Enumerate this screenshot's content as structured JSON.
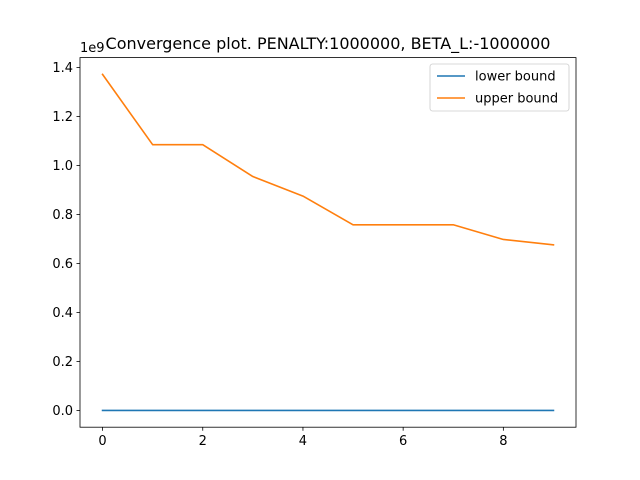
{
  "chart_data": {
    "type": "line",
    "title": "Convergence plot. PENALTY:1000000, BETA_L:-1000000",
    "xlabel": "",
    "ylabel": "",
    "y_offset_label": "1e9",
    "x": [
      0,
      1,
      2,
      3,
      4,
      5,
      6,
      7,
      8,
      9
    ],
    "xlim": [
      -0.45,
      9.45
    ],
    "ylim": [
      -0.0686,
      1.4406
    ],
    "x_ticks": [
      0,
      2,
      4,
      6,
      8
    ],
    "x_tick_labels": [
      "0",
      "2",
      "4",
      "6",
      "8"
    ],
    "y_ticks": [
      0.0,
      0.2,
      0.4,
      0.6,
      0.8,
      1.0,
      1.2,
      1.4
    ],
    "y_tick_labels": [
      "0.0",
      "0.2",
      "0.4",
      "0.6",
      "0.8",
      "1.0",
      "1.2",
      "1.4"
    ],
    "grid": false,
    "legend_position": "top-right",
    "series": [
      {
        "name": "lower bound",
        "color": "#1f77b4",
        "values": [
          0,
          0,
          0,
          0,
          0,
          0,
          0,
          0,
          0,
          0
        ]
      },
      {
        "name": "upper bound",
        "color": "#ff7f0e",
        "values": [
          1.372,
          1.085,
          1.085,
          0.955,
          0.875,
          0.758,
          0.758,
          0.758,
          0.698,
          0.676
        ]
      }
    ]
  }
}
